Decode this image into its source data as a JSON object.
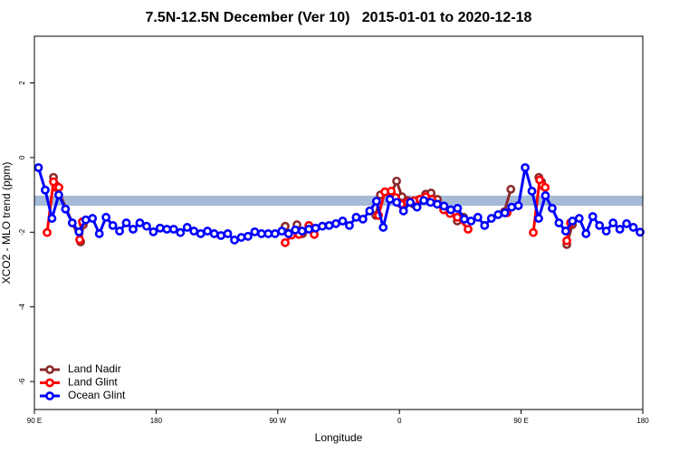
{
  "chart_data": {
    "type": "line",
    "title": "7.5N-12.5N December (Ver 10)   2015-01-01 to 2020-12-18",
    "x_label": "Longitude",
    "y_label": "XCO2 - MLO trend (ppm)",
    "xlim": [
      90,
      540
    ],
    "ylim": [
      -6.75,
      3.25
    ],
    "xticks": [
      {
        "value": 90,
        "label": "90 E"
      },
      180,
      {
        "value": 270,
        "label": "90 W"
      },
      {
        "value": 360,
        "label": "0"
      },
      {
        "value": 450,
        "label": "90 E"
      },
      {
        "value": 540,
        "label": "180"
      }
    ],
    "yticks": [
      -6,
      -4,
      -2,
      0,
      2
    ],
    "band": {
      "range": [
        -1.29,
        -1.02
      ],
      "color": "#a4bad6"
    },
    "legend": "bottom-left",
    "series": [
      {
        "name": "Land Nadir",
        "color": "#8b2a2a",
        "x": [
          104.1,
          106.1,
          124.2,
          126.2,
          null,
          275.5,
          280.2,
          284.2,
          288.3,
          293,
          null,
          342.5,
          345.9,
          349.2,
          353.9,
          357.9,
          361.9,
          365.9,
          370.6,
          374.7,
          379.4,
          383.4,
          388.1,
          392.7,
          397.4,
          402.8,
          407.5,
          null,
          437.6,
          442.4,
          null,
          463.1,
          465.1,
          null,
          483.8,
          487.9
        ],
        "values": [
          -0.53,
          -0.75,
          -2.26,
          -1.8,
          null,
          -1.84,
          -2.04,
          -1.8,
          -2.04,
          -1.82,
          null,
          -1.55,
          -1.0,
          -0.92,
          -0.98,
          -0.63,
          -1.05,
          -1.15,
          -1.25,
          -1.12,
          -0.98,
          -0.95,
          -1.12,
          -1.3,
          -1.45,
          -1.7,
          -1.6,
          null,
          -1.45,
          -0.85,
          null,
          -0.53,
          -0.65,
          null,
          -2.33,
          -1.8
        ]
      },
      {
        "name": "Land Glint",
        "color": "#ff0000",
        "x": [
          99.4,
          104.1,
          106.1,
          108.1,
          null,
          123.5,
          125.5,
          null,
          275.5,
          280.2,
          285.6,
          293,
          297,
          null,
          344.5,
          349.2,
          353.9,
          357.2,
          361.3,
          365.9,
          370.6,
          375.3,
          379.4,
          384,
          388.1,
          392.7,
          397.4,
          402.8,
          410.8,
          null,
          439.6,
          null,
          459,
          463.7,
          465.7,
          467.8,
          null,
          483.8,
          486.5
        ],
        "values": [
          -2.01,
          -0.65,
          -0.8,
          -0.8,
          null,
          -2.2,
          -1.72,
          null,
          -2.28,
          -2.08,
          -2.06,
          -1.82,
          -2.06,
          null,
          -1.55,
          -0.92,
          -0.9,
          -1.07,
          -1.25,
          -1.2,
          -1.16,
          -1.12,
          -1.05,
          -1.12,
          -1.25,
          -1.4,
          -1.5,
          -1.6,
          -1.92,
          null,
          -1.48,
          null,
          -2.01,
          -0.6,
          -0.75,
          -0.8,
          null,
          -2.23,
          -1.75
        ]
      },
      {
        "name": "Ocean Glint",
        "color": "#0000ff",
        "x": [
          93,
          98,
          103,
          108,
          113,
          118,
          123,
          128,
          133,
          138,
          143,
          148,
          153,
          158,
          163,
          168,
          173,
          178,
          183,
          188,
          193,
          198,
          203,
          208,
          213,
          218,
          223,
          228,
          233,
          238,
          243,
          248,
          253,
          258,
          263,
          268,
          273,
          278,
          283,
          288,
          293,
          298,
          303,
          308,
          313,
          318,
          323,
          328,
          333,
          338,
          343,
          348,
          353,
          358,
          363,
          368,
          373,
          378,
          383,
          388,
          393,
          398,
          403,
          408,
          413,
          418,
          423,
          428,
          433,
          438,
          443,
          448,
          453,
          458,
          463,
          468,
          473,
          478,
          483,
          488,
          493,
          498,
          503,
          508,
          513,
          518,
          523,
          528,
          533,
          538
        ],
        "values": [
          -0.27,
          -0.87,
          -1.63,
          -1.0,
          -1.38,
          -1.75,
          -1.99,
          -1.67,
          -1.63,
          -2.04,
          -1.6,
          -1.82,
          -1.97,
          -1.75,
          -1.92,
          -1.75,
          -1.84,
          -1.99,
          -1.89,
          -1.92,
          -1.92,
          -2.01,
          -1.87,
          -1.97,
          -2.04,
          -1.97,
          -2.04,
          -2.09,
          -2.04,
          -2.21,
          -2.14,
          -2.11,
          -1.99,
          -2.04,
          -2.04,
          -2.04,
          -1.97,
          -2.04,
          -1.94,
          -1.97,
          -1.92,
          -1.89,
          -1.84,
          -1.82,
          -1.77,
          -1.7,
          -1.82,
          -1.6,
          -1.65,
          -1.43,
          -1.17,
          -1.87,
          -1.12,
          -1.2,
          -1.43,
          -1.2,
          -1.33,
          -1.15,
          -1.2,
          -1.25,
          -1.3,
          -1.4,
          -1.36,
          -1.65,
          -1.7,
          -1.6,
          -1.82,
          -1.63,
          -1.53,
          -1.48,
          -1.33,
          -1.29,
          -0.27,
          -0.9,
          -1.63,
          -1.02,
          -1.36,
          -1.75,
          -1.97,
          -1.7,
          -1.63,
          -2.04,
          -1.58,
          -1.82,
          -1.97,
          -1.75,
          -1.92,
          -1.77,
          -1.87,
          -2.0
        ]
      }
    ]
  }
}
